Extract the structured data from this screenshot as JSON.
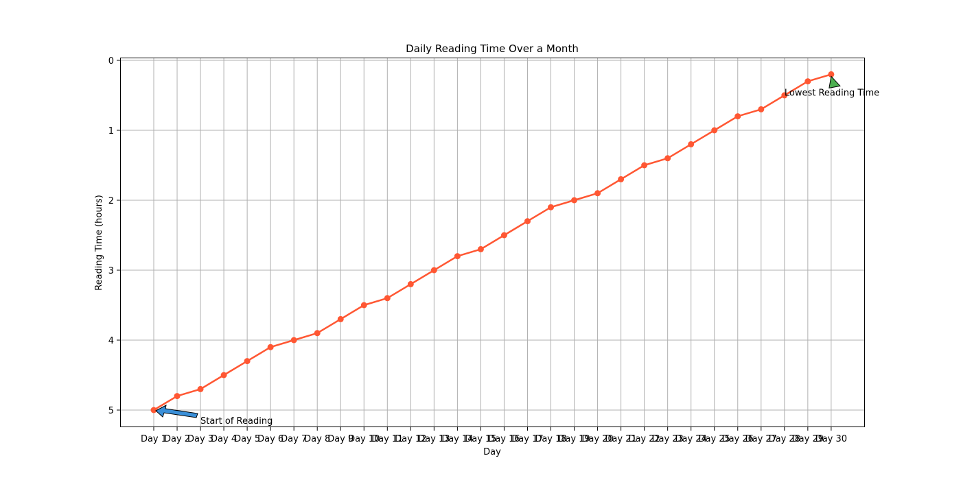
{
  "chart_data": {
    "type": "line",
    "title": "Daily Reading Time Over a Month",
    "xlabel": "Day",
    "ylabel": "Reading Time (hours)",
    "categories": [
      "Day 1",
      "Day 2",
      "Day 3",
      "Day 4",
      "Day 5",
      "Day 6",
      "Day 7",
      "Day 8",
      "Day 9",
      "Day 10",
      "Day 11",
      "Day 12",
      "Day 13",
      "Day 14",
      "Day 15",
      "Day 16",
      "Day 17",
      "Day 18",
      "Day 19",
      "Day 20",
      "Day 21",
      "Day 22",
      "Day 23",
      "Day 24",
      "Day 25",
      "Day 26",
      "Day 27",
      "Day 28",
      "Day 29",
      "Day 30"
    ],
    "series": [
      {
        "values": [
          5.0,
          4.8,
          4.7,
          4.5,
          4.3,
          4.1,
          4.0,
          3.9,
          3.7,
          3.5,
          3.4,
          3.2,
          3.0,
          2.8,
          2.7,
          2.5,
          2.3,
          2.1,
          2.0,
          1.9,
          1.7,
          1.5,
          1.4,
          1.2,
          1.0,
          0.8,
          0.7,
          0.5,
          0.3,
          0.2
        ],
        "color": "#FF5733"
      }
    ],
    "yticks": [
      "0",
      "1",
      "2",
      "3",
      "4",
      "5"
    ],
    "ylim": [
      5.25,
      -0.04
    ],
    "y_inverted": true,
    "grid": true,
    "annotations": [
      {
        "text": "Start of Reading",
        "point_category": "Day 1",
        "point_value": 5.0,
        "arrow_color": "#3A8FD8"
      },
      {
        "text": "Lowest Reading Time",
        "point_category": "Day 30",
        "point_value": 0.2,
        "arrow_color": "#4CAF50"
      }
    ]
  }
}
